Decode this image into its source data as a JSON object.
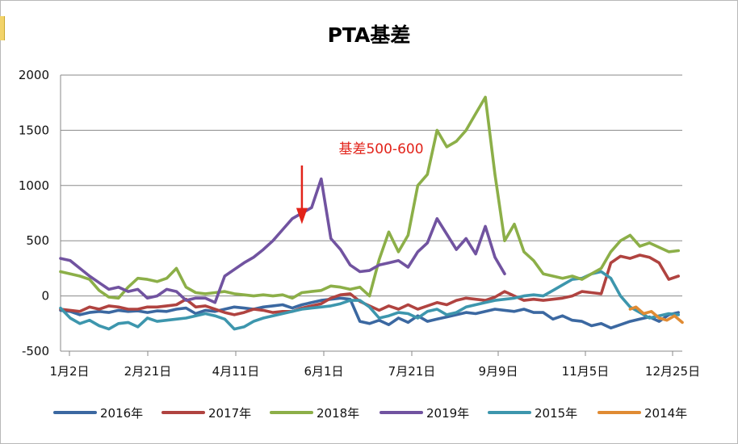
{
  "chart_data": {
    "type": "line",
    "title": "PTA基差",
    "xlabel": "",
    "ylabel": "",
    "x_ticks": [
      "1月2日",
      "2月21日",
      "4月11日",
      "6月1日",
      "7月21日",
      "9月9日",
      "11月5日",
      "12月25日"
    ],
    "ylim": [
      -500,
      2000
    ],
    "y_ticks": [
      -500,
      0,
      500,
      1000,
      1500,
      2000
    ],
    "grid": true,
    "legend_position": "bottom",
    "annotation": {
      "text": "基差500-600",
      "x": 125,
      "y": 650
    },
    "series": [
      {
        "name": "2016年",
        "color": "#3b68a1",
        "points": [
          [
            0,
            -130
          ],
          [
            5,
            -140
          ],
          [
            10,
            -170
          ],
          [
            15,
            -150
          ],
          [
            20,
            -140
          ],
          [
            25,
            -150
          ],
          [
            30,
            -130
          ],
          [
            35,
            -140
          ],
          [
            40,
            -135
          ],
          [
            45,
            -150
          ],
          [
            50,
            -135
          ],
          [
            55,
            -140
          ],
          [
            60,
            -120
          ],
          [
            65,
            -110
          ],
          [
            70,
            -160
          ],
          [
            75,
            -130
          ],
          [
            80,
            -140
          ],
          [
            85,
            -120
          ],
          [
            90,
            -100
          ],
          [
            95,
            -110
          ],
          [
            100,
            -120
          ],
          [
            105,
            -100
          ],
          [
            110,
            -90
          ],
          [
            115,
            -80
          ],
          [
            120,
            -110
          ],
          [
            125,
            -80
          ],
          [
            130,
            -60
          ],
          [
            135,
            -40
          ],
          [
            140,
            -30
          ],
          [
            145,
            -20
          ],
          [
            150,
            -30
          ],
          [
            155,
            -230
          ],
          [
            160,
            -250
          ],
          [
            165,
            -220
          ],
          [
            170,
            -260
          ],
          [
            175,
            -200
          ],
          [
            180,
            -240
          ],
          [
            185,
            -180
          ],
          [
            190,
            -230
          ],
          [
            195,
            -210
          ],
          [
            200,
            -190
          ],
          [
            205,
            -170
          ],
          [
            210,
            -150
          ],
          [
            215,
            -160
          ],
          [
            220,
            -140
          ],
          [
            225,
            -120
          ],
          [
            230,
            -130
          ],
          [
            235,
            -140
          ],
          [
            240,
            -120
          ],
          [
            245,
            -150
          ],
          [
            250,
            -150
          ],
          [
            255,
            -210
          ],
          [
            260,
            -180
          ],
          [
            265,
            -220
          ],
          [
            270,
            -230
          ],
          [
            275,
            -270
          ],
          [
            280,
            -250
          ],
          [
            285,
            -290
          ],
          [
            290,
            -260
          ],
          [
            295,
            -230
          ],
          [
            300,
            -210
          ],
          [
            305,
            -190
          ],
          [
            310,
            -230
          ],
          [
            315,
            -170
          ],
          [
            320,
            -150
          ]
        ]
      },
      {
        "name": "2017年",
        "color": "#b04340",
        "points": [
          [
            0,
            -120
          ],
          [
            5,
            -130
          ],
          [
            10,
            -140
          ],
          [
            15,
            -100
          ],
          [
            20,
            -120
          ],
          [
            25,
            -90
          ],
          [
            30,
            -100
          ],
          [
            35,
            -120
          ],
          [
            40,
            -120
          ],
          [
            45,
            -100
          ],
          [
            50,
            -100
          ],
          [
            55,
            -90
          ],
          [
            60,
            -80
          ],
          [
            65,
            -30
          ],
          [
            70,
            -100
          ],
          [
            75,
            -90
          ],
          [
            80,
            -120
          ],
          [
            85,
            -150
          ],
          [
            90,
            -170
          ],
          [
            95,
            -150
          ],
          [
            100,
            -120
          ],
          [
            105,
            -130
          ],
          [
            110,
            -150
          ],
          [
            115,
            -140
          ],
          [
            120,
            -140
          ],
          [
            125,
            -110
          ],
          [
            130,
            -90
          ],
          [
            135,
            -70
          ],
          [
            140,
            -20
          ],
          [
            145,
            10
          ],
          [
            150,
            20
          ],
          [
            155,
            -50
          ],
          [
            160,
            -90
          ],
          [
            165,
            -130
          ],
          [
            170,
            -90
          ],
          [
            175,
            -120
          ],
          [
            180,
            -80
          ],
          [
            185,
            -120
          ],
          [
            190,
            -90
          ],
          [
            195,
            -60
          ],
          [
            200,
            -80
          ],
          [
            205,
            -40
          ],
          [
            210,
            -20
          ],
          [
            215,
            -30
          ],
          [
            220,
            -40
          ],
          [
            225,
            -10
          ],
          [
            230,
            40
          ],
          [
            235,
            0
          ],
          [
            240,
            -40
          ],
          [
            245,
            -30
          ],
          [
            250,
            -40
          ],
          [
            255,
            -30
          ],
          [
            260,
            -20
          ],
          [
            265,
            0
          ],
          [
            270,
            40
          ],
          [
            275,
            30
          ],
          [
            280,
            20
          ],
          [
            285,
            300
          ],
          [
            290,
            360
          ],
          [
            295,
            340
          ],
          [
            300,
            370
          ],
          [
            305,
            350
          ],
          [
            310,
            300
          ],
          [
            315,
            150
          ],
          [
            320,
            180
          ]
        ]
      },
      {
        "name": "2018年",
        "color": "#8caf48",
        "points": [
          [
            0,
            220
          ],
          [
            5,
            200
          ],
          [
            10,
            180
          ],
          [
            15,
            150
          ],
          [
            20,
            50
          ],
          [
            25,
            -10
          ],
          [
            30,
            -20
          ],
          [
            35,
            80
          ],
          [
            40,
            160
          ],
          [
            45,
            150
          ],
          [
            50,
            130
          ],
          [
            55,
            160
          ],
          [
            60,
            250
          ],
          [
            65,
            80
          ],
          [
            70,
            30
          ],
          [
            75,
            20
          ],
          [
            80,
            30
          ],
          [
            85,
            40
          ],
          [
            90,
            20
          ],
          [
            95,
            10
          ],
          [
            100,
            0
          ],
          [
            105,
            10
          ],
          [
            110,
            0
          ],
          [
            115,
            10
          ],
          [
            120,
            -20
          ],
          [
            125,
            30
          ],
          [
            130,
            40
          ],
          [
            135,
            50
          ],
          [
            140,
            90
          ],
          [
            145,
            80
          ],
          [
            150,
            60
          ],
          [
            155,
            80
          ],
          [
            160,
            0
          ],
          [
            165,
            330
          ],
          [
            170,
            580
          ],
          [
            175,
            400
          ],
          [
            180,
            550
          ],
          [
            185,
            1000
          ],
          [
            190,
            1100
          ],
          [
            195,
            1500
          ],
          [
            200,
            1350
          ],
          [
            205,
            1400
          ],
          [
            210,
            1500
          ],
          [
            215,
            1650
          ],
          [
            220,
            1800
          ],
          [
            225,
            1100
          ],
          [
            230,
            500
          ],
          [
            235,
            650
          ],
          [
            240,
            400
          ],
          [
            245,
            320
          ],
          [
            250,
            200
          ],
          [
            255,
            180
          ],
          [
            260,
            160
          ],
          [
            265,
            180
          ],
          [
            270,
            150
          ],
          [
            275,
            200
          ],
          [
            280,
            250
          ],
          [
            285,
            400
          ],
          [
            290,
            500
          ],
          [
            295,
            550
          ],
          [
            300,
            450
          ],
          [
            305,
            480
          ],
          [
            310,
            440
          ],
          [
            315,
            400
          ],
          [
            320,
            410
          ]
        ]
      },
      {
        "name": "2019年",
        "color": "#7153a0",
        "points": [
          [
            0,
            340
          ],
          [
            5,
            320
          ],
          [
            10,
            250
          ],
          [
            15,
            180
          ],
          [
            20,
            120
          ],
          [
            25,
            60
          ],
          [
            30,
            80
          ],
          [
            35,
            40
          ],
          [
            40,
            60
          ],
          [
            45,
            -20
          ],
          [
            50,
            0
          ],
          [
            55,
            60
          ],
          [
            60,
            40
          ],
          [
            65,
            -40
          ],
          [
            70,
            -20
          ],
          [
            75,
            -20
          ],
          [
            80,
            -60
          ],
          [
            85,
            180
          ],
          [
            90,
            240
          ],
          [
            95,
            300
          ],
          [
            100,
            350
          ],
          [
            105,
            420
          ],
          [
            110,
            500
          ],
          [
            115,
            600
          ],
          [
            120,
            700
          ],
          [
            125,
            750
          ],
          [
            130,
            800
          ],
          [
            135,
            1060
          ],
          [
            140,
            520
          ],
          [
            145,
            420
          ],
          [
            150,
            280
          ],
          [
            155,
            220
          ],
          [
            160,
            230
          ],
          [
            165,
            280
          ],
          [
            170,
            300
          ],
          [
            175,
            320
          ],
          [
            180,
            260
          ],
          [
            185,
            400
          ],
          [
            190,
            480
          ],
          [
            195,
            700
          ],
          [
            200,
            560
          ],
          [
            205,
            420
          ],
          [
            210,
            520
          ],
          [
            215,
            380
          ],
          [
            220,
            630
          ],
          [
            225,
            350
          ],
          [
            230,
            200
          ]
        ]
      },
      {
        "name": "2015年",
        "color": "#3d96ad",
        "points": [
          [
            0,
            -110
          ],
          [
            5,
            -200
          ],
          [
            10,
            -250
          ],
          [
            15,
            -220
          ],
          [
            20,
            -270
          ],
          [
            25,
            -300
          ],
          [
            30,
            -250
          ],
          [
            35,
            -240
          ],
          [
            40,
            -280
          ],
          [
            45,
            -200
          ],
          [
            50,
            -230
          ],
          [
            55,
            -220
          ],
          [
            60,
            -210
          ],
          [
            65,
            -200
          ],
          [
            70,
            -180
          ],
          [
            75,
            -160
          ],
          [
            80,
            -180
          ],
          [
            85,
            -210
          ],
          [
            90,
            -300
          ],
          [
            95,
            -280
          ],
          [
            100,
            -230
          ],
          [
            105,
            -200
          ],
          [
            110,
            -180
          ],
          [
            115,
            -160
          ],
          [
            120,
            -140
          ],
          [
            125,
            -120
          ],
          [
            130,
            -110
          ],
          [
            135,
            -100
          ],
          [
            140,
            -90
          ],
          [
            145,
            -70
          ],
          [
            150,
            -40
          ],
          [
            155,
            -40
          ],
          [
            160,
            -100
          ],
          [
            165,
            -200
          ],
          [
            170,
            -180
          ],
          [
            175,
            -150
          ],
          [
            180,
            -160
          ],
          [
            185,
            -200
          ],
          [
            190,
            -140
          ],
          [
            195,
            -120
          ],
          [
            200,
            -170
          ],
          [
            205,
            -150
          ],
          [
            210,
            -100
          ],
          [
            215,
            -80
          ],
          [
            220,
            -60
          ],
          [
            225,
            -40
          ],
          [
            230,
            -30
          ],
          [
            235,
            -20
          ],
          [
            240,
            0
          ],
          [
            245,
            10
          ],
          [
            250,
            0
          ],
          [
            255,
            50
          ],
          [
            260,
            100
          ],
          [
            265,
            150
          ],
          [
            270,
            160
          ],
          [
            275,
            200
          ],
          [
            280,
            220
          ],
          [
            285,
            160
          ],
          [
            290,
            0
          ],
          [
            295,
            -100
          ],
          [
            300,
            -150
          ],
          [
            305,
            -200
          ],
          [
            310,
            -180
          ],
          [
            315,
            -160
          ],
          [
            320,
            -170
          ]
        ]
      },
      {
        "name": "2014年",
        "color": "#e08b33",
        "points": [
          [
            295,
            -120
          ],
          [
            298,
            -100
          ],
          [
            302,
            -160
          ],
          [
            306,
            -140
          ],
          [
            310,
            -200
          ],
          [
            314,
            -220
          ],
          [
            318,
            -180
          ],
          [
            322,
            -240
          ]
        ]
      }
    ]
  }
}
